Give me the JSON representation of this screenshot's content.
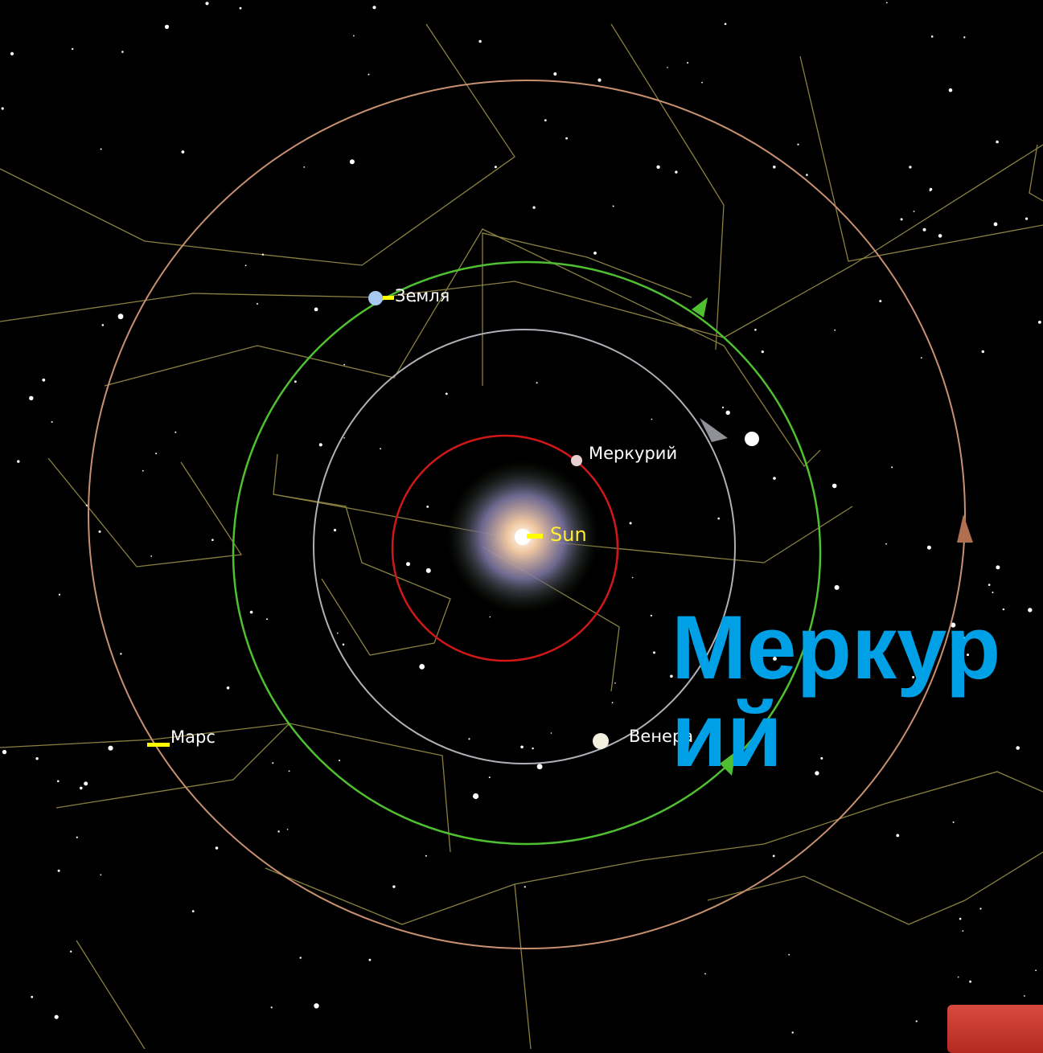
{
  "labels": {
    "earth": "Земля",
    "mercury": "Меркурий",
    "sun": "Sun",
    "mars": "Марс",
    "venus": "Венера"
  },
  "title": "Меркурий"
}
